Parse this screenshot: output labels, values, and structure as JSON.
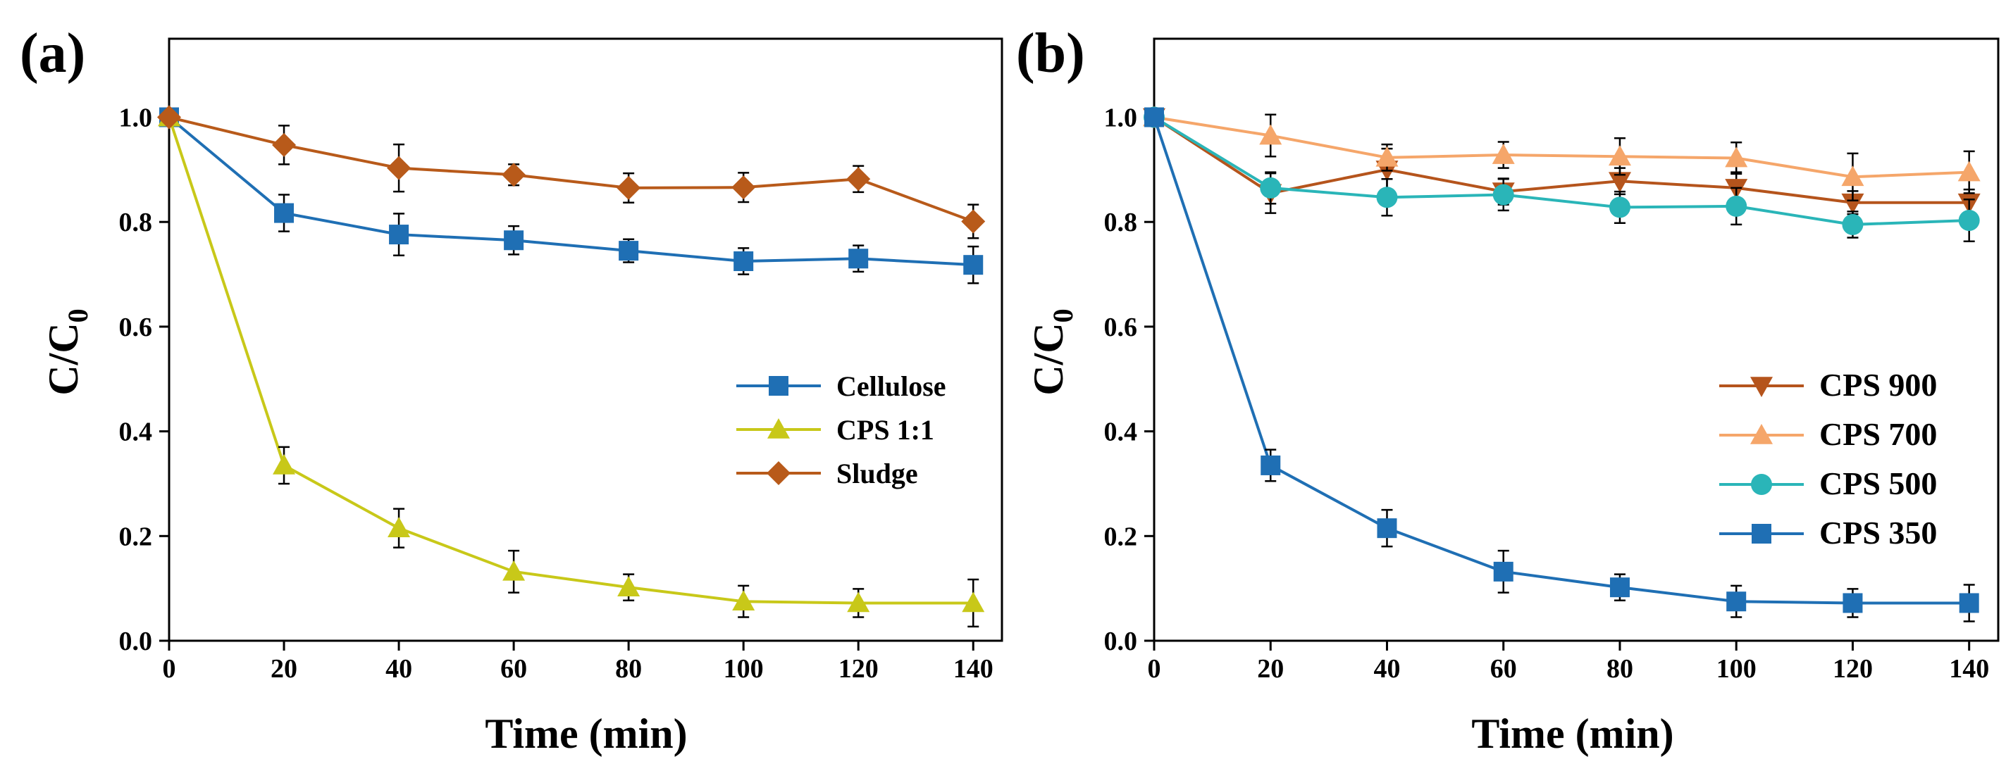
{
  "chart_data": [
    {
      "type": "line",
      "panel_label": "(a)",
      "xlabel": "Time (min)",
      "ylabel_main": "C/C",
      "ylabel_sub": "0",
      "xlim": [
        0,
        145
      ],
      "ylim": [
        0,
        1.15
      ],
      "xticks": [
        0,
        20,
        40,
        60,
        80,
        100,
        120,
        140
      ],
      "xtick_labels": [
        "0",
        "20",
        "40",
        "60",
        "80",
        "100",
        "120",
        "140"
      ],
      "yticks": [
        0,
        0.2,
        0.4,
        0.6,
        0.8,
        1.0
      ],
      "ytick_labels": [
        "0.0",
        "0.2",
        "0.4",
        "0.6",
        "0.8",
        "1.0"
      ],
      "legend_position": "center-right",
      "x": [
        0,
        20,
        40,
        60,
        80,
        100,
        120,
        140
      ],
      "series": [
        {
          "name": "Cellulose",
          "color": "#1F6FB4",
          "marker": "square",
          "values": [
            1.0,
            0.817,
            0.776,
            0.765,
            0.745,
            0.725,
            0.73,
            0.718
          ],
          "errors": [
            0.01,
            0.035,
            0.04,
            0.027,
            0.022,
            0.025,
            0.025,
            0.035
          ]
        },
        {
          "name": "CPS 1:1",
          "color": "#C8C819",
          "marker": "triangle-up",
          "values": [
            1.0,
            0.335,
            0.215,
            0.132,
            0.102,
            0.075,
            0.072,
            0.072
          ],
          "errors": [
            0.01,
            0.035,
            0.037,
            0.04,
            0.025,
            0.03,
            0.027,
            0.045
          ]
        },
        {
          "name": "Sludge",
          "color": "#B85A1A",
          "marker": "diamond",
          "values": [
            1.0,
            0.947,
            0.903,
            0.89,
            0.865,
            0.866,
            0.882,
            0.801
          ],
          "errors": [
            0.01,
            0.037,
            0.045,
            0.02,
            0.028,
            0.028,
            0.025,
            0.032
          ]
        }
      ]
    },
    {
      "type": "line",
      "panel_label": "(b)",
      "xlabel": "Time (min)",
      "ylabel_main": "C/C",
      "ylabel_sub": "0",
      "xlim": [
        0,
        145
      ],
      "ylim": [
        0,
        1.15
      ],
      "xticks": [
        0,
        20,
        40,
        60,
        80,
        100,
        120,
        140
      ],
      "xtick_labels": [
        "0",
        "20",
        "40",
        "60",
        "80",
        "100",
        "120",
        "140"
      ],
      "yticks": [
        0,
        0.2,
        0.4,
        0.6,
        0.8,
        1.0
      ],
      "ytick_labels": [
        "0.0",
        "0.2",
        "0.4",
        "0.6",
        "0.8",
        "1.0"
      ],
      "legend_position": "center-right",
      "x": [
        0,
        20,
        40,
        60,
        80,
        100,
        120,
        140
      ],
      "series": [
        {
          "name": "CPS 900",
          "color": "#B5541C",
          "marker": "triangle-down",
          "values": [
            1.0,
            0.855,
            0.9,
            0.858,
            0.878,
            0.865,
            0.837,
            0.837
          ],
          "errors": [
            0.01,
            0.038,
            0.04,
            0.025,
            0.025,
            0.03,
            0.022,
            0.025
          ]
        },
        {
          "name": "CPS 700",
          "color": "#F5A66A",
          "marker": "triangle-up",
          "values": [
            1.0,
            0.965,
            0.923,
            0.928,
            0.925,
            0.922,
            0.886,
            0.895
          ],
          "errors": [
            0.01,
            0.04,
            0.025,
            0.025,
            0.035,
            0.03,
            0.045,
            0.04
          ]
        },
        {
          "name": "CPS 500",
          "color": "#2AB5B8",
          "marker": "circle",
          "values": [
            1.0,
            0.865,
            0.847,
            0.852,
            0.828,
            0.83,
            0.795,
            0.803
          ],
          "errors": [
            0.01,
            0.03,
            0.035,
            0.03,
            0.03,
            0.035,
            0.025,
            0.04
          ]
        },
        {
          "name": "CPS 350",
          "color": "#1F6FB4",
          "marker": "square",
          "values": [
            1.0,
            0.335,
            0.215,
            0.132,
            0.102,
            0.075,
            0.072,
            0.072
          ],
          "errors": [
            0.01,
            0.03,
            0.035,
            0.04,
            0.025,
            0.03,
            0.027,
            0.035
          ]
        }
      ]
    }
  ]
}
